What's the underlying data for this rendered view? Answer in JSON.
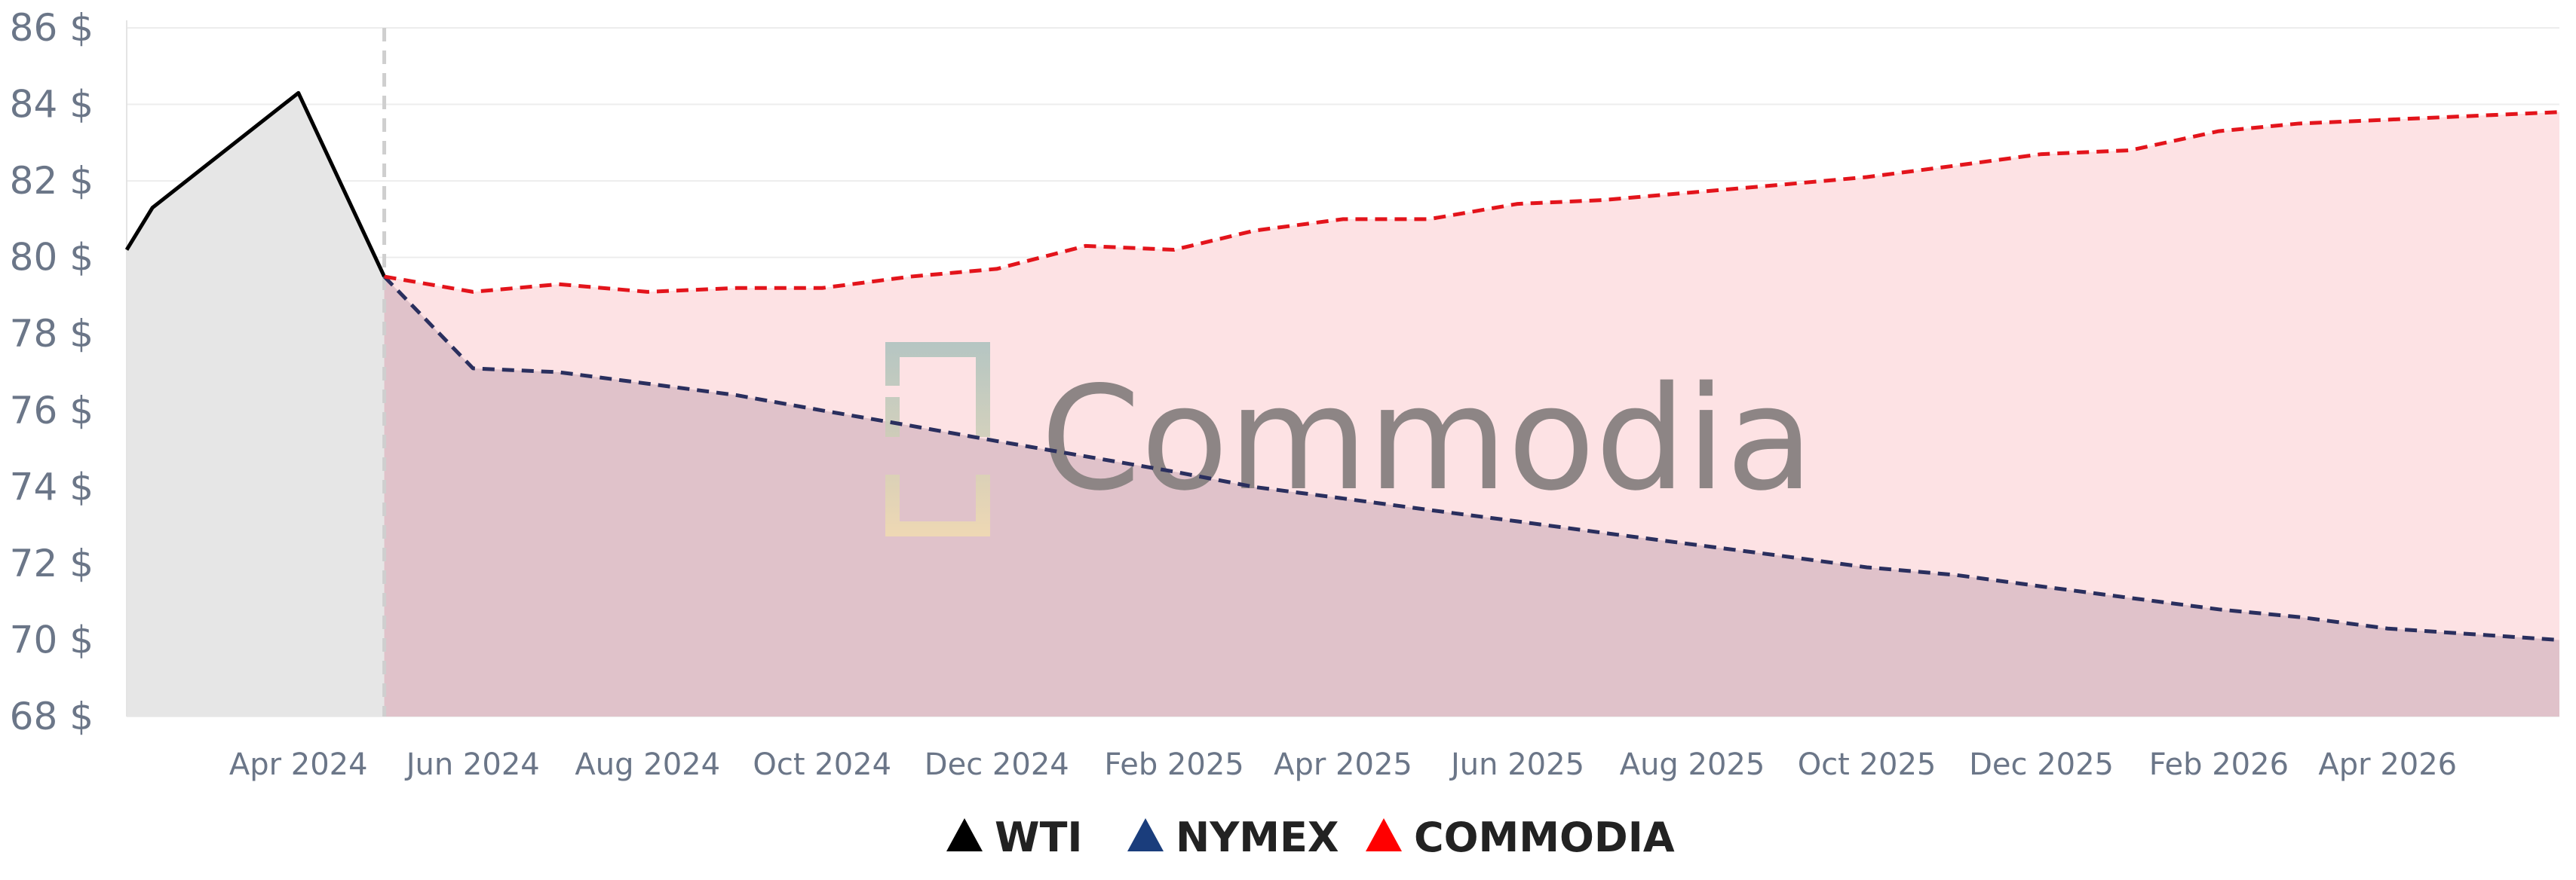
{
  "chart_data": {
    "type": "line",
    "y_unit_suffix": " $",
    "ylim": [
      68,
      86
    ],
    "yticks": [
      68,
      70,
      72,
      74,
      76,
      78,
      80,
      82,
      84,
      86
    ],
    "xlim": [
      "2024-02-01",
      "2026-05-31"
    ],
    "xticks": [
      {
        "date": "2024-04-01",
        "label": "Apr 2024"
      },
      {
        "date": "2024-06-01",
        "label": "Jun 2024"
      },
      {
        "date": "2024-08-01",
        "label": "Aug 2024"
      },
      {
        "date": "2024-10-01",
        "label": "Oct 2024"
      },
      {
        "date": "2024-12-01",
        "label": "Dec 2024"
      },
      {
        "date": "2025-02-01",
        "label": "Feb 2025"
      },
      {
        "date": "2025-04-01",
        "label": "Apr 2025"
      },
      {
        "date": "2025-06-01",
        "label": "Jun 2025"
      },
      {
        "date": "2025-08-01",
        "label": "Aug 2025"
      },
      {
        "date": "2025-10-01",
        "label": "Oct 2025"
      },
      {
        "date": "2025-12-01",
        "label": "Dec 2025"
      },
      {
        "date": "2026-02-01",
        "label": "Feb 2026"
      },
      {
        "date": "2026-04-01",
        "label": "Apr 2026"
      }
    ],
    "divider_date": "2024-05-01",
    "grid": true,
    "legend_position": "bottom-center",
    "series": [
      {
        "name": "WTI",
        "color": "#000000",
        "dash": false,
        "fill": "#e6e6e6",
        "points": [
          [
            "2024-02-01",
            80.2
          ],
          [
            "2024-02-10",
            81.3
          ],
          [
            "2024-04-01",
            84.3
          ],
          [
            "2024-05-01",
            79.5
          ]
        ]
      },
      {
        "name": "NYMEX",
        "color": "#2a2f5e",
        "legend_color": "#1a3d7c",
        "dash": true,
        "fill": "#c9a7b4",
        "points": [
          [
            "2024-05-01",
            79.5
          ],
          [
            "2024-06-01",
            77.1
          ],
          [
            "2024-07-01",
            77.0
          ],
          [
            "2024-08-01",
            76.7
          ],
          [
            "2024-09-01",
            76.4
          ],
          [
            "2024-10-01",
            76.0
          ],
          [
            "2024-11-01",
            75.6
          ],
          [
            "2024-12-01",
            75.2
          ],
          [
            "2025-01-01",
            74.8
          ],
          [
            "2025-02-01",
            74.4
          ],
          [
            "2025-03-01",
            74.0
          ],
          [
            "2025-04-01",
            73.7
          ],
          [
            "2025-05-01",
            73.4
          ],
          [
            "2025-06-01",
            73.1
          ],
          [
            "2025-07-01",
            72.8
          ],
          [
            "2025-08-01",
            72.5
          ],
          [
            "2025-09-01",
            72.2
          ],
          [
            "2025-10-01",
            71.9
          ],
          [
            "2025-11-01",
            71.7
          ],
          [
            "2025-12-01",
            71.4
          ],
          [
            "2026-01-01",
            71.1
          ],
          [
            "2026-02-01",
            70.8
          ],
          [
            "2026-03-01",
            70.6
          ],
          [
            "2026-04-01",
            70.3
          ],
          [
            "2026-05-31",
            70.0
          ]
        ]
      },
      {
        "name": "COMMODIA",
        "color": "#e3141b",
        "legend_color": "#ff0000",
        "dash": true,
        "fill": "#fde2e4",
        "points": [
          [
            "2024-05-01",
            79.5
          ],
          [
            "2024-06-01",
            79.1
          ],
          [
            "2024-07-01",
            79.3
          ],
          [
            "2024-08-01",
            79.1
          ],
          [
            "2024-09-01",
            79.2
          ],
          [
            "2024-10-01",
            79.2
          ],
          [
            "2024-11-01",
            79.5
          ],
          [
            "2024-12-01",
            79.7
          ],
          [
            "2025-01-01",
            80.3
          ],
          [
            "2025-02-01",
            80.2
          ],
          [
            "2025-03-01",
            80.7
          ],
          [
            "2025-04-01",
            81.0
          ],
          [
            "2025-05-01",
            81.0
          ],
          [
            "2025-06-01",
            81.4
          ],
          [
            "2025-07-01",
            81.5
          ],
          [
            "2025-08-01",
            81.7
          ],
          [
            "2025-09-01",
            81.9
          ],
          [
            "2025-10-01",
            82.1
          ],
          [
            "2025-11-01",
            82.4
          ],
          [
            "2025-12-01",
            82.7
          ],
          [
            "2026-01-01",
            82.8
          ],
          [
            "2026-02-01",
            83.3
          ],
          [
            "2026-03-01",
            83.5
          ],
          [
            "2026-04-01",
            83.6
          ],
          [
            "2026-05-31",
            83.8
          ]
        ]
      }
    ]
  },
  "watermark": {
    "text": "Commodia",
    "bracket_colors": [
      "#a8c0bc",
      "#f1dcb0"
    ]
  }
}
